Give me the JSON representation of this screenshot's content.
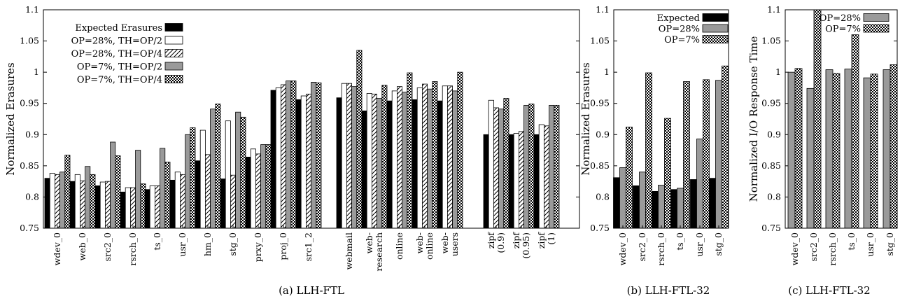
{
  "colors": {
    "black": "#000000",
    "white": "#ffffff",
    "gray": "#9a9a9a",
    "axis": "#000000"
  },
  "chart_data": [
    {
      "type": "bar",
      "caption": "(a) LLH-FTL",
      "ylabel": "Normalized Erasures",
      "ylim": [
        0.75,
        1.1
      ],
      "yticks": [
        "0.75",
        "0.8",
        "0.85",
        "0.9",
        "0.95",
        "1",
        "1.05",
        "1.1"
      ],
      "legend_position": "top-left",
      "categories": [
        "wdev_0",
        "web_0",
        "src2_0",
        "rsrch_0",
        "ts_0",
        "usr_0",
        "hm_0",
        "stg_0",
        "prxy_0",
        "proj_0",
        "src1_2",
        "webmail",
        "web-\nresearch",
        "online",
        "web-\nonline",
        "web-\nusers",
        "zipf\n(0.9)",
        "zipf\n(0.95)",
        "zipf\n(1)"
      ],
      "series": [
        {
          "name": "Expected Erasures",
          "pattern": "black",
          "values": [
            0.83,
            0.825,
            0.818,
            0.808,
            0.812,
            0.827,
            0.858,
            0.829,
            0.864,
            0.971,
            0.956,
            0.959,
            0.938,
            0.954,
            0.956,
            0.954,
            0.9,
            0.9,
            0.9
          ]
        },
        {
          "name": "OP=28%, TH=OP/2",
          "pattern": "white",
          "values": [
            0.838,
            0.836,
            0.824,
            0.815,
            0.818,
            0.84,
            0.907,
            0.922,
            0.877,
            0.975,
            0.962,
            0.982,
            0.966,
            0.97,
            0.975,
            0.978,
            0.955,
            0.902,
            0.916
          ]
        },
        {
          "name": "OP=28%, TH=OP/4",
          "pattern": "hatch",
          "values": [
            0.836,
            0.826,
            0.825,
            0.815,
            0.818,
            0.836,
            0.868,
            0.835,
            0.869,
            0.98,
            0.965,
            0.982,
            0.965,
            0.977,
            0.981,
            0.978,
            0.943,
            0.905,
            0.914
          ]
        },
        {
          "name": "OP=7%, TH=OP/2",
          "pattern": "gray",
          "values": [
            0.84,
            0.849,
            0.888,
            0.875,
            0.878,
            0.9,
            0.941,
            0.936,
            0.884,
            0.986,
            0.984,
            0.977,
            0.958,
            0.968,
            0.973,
            0.97,
            0.941,
            0.947,
            0.947
          ]
        },
        {
          "name": "OP=7%, TH=OP/4",
          "pattern": "check",
          "values": [
            0.867,
            0.836,
            0.866,
            0.821,
            0.856,
            0.911,
            0.949,
            0.928,
            0.884,
            0.986,
            0.983,
            1.035,
            0.979,
            0.999,
            0.985,
            1.0,
            0.958,
            0.949,
            0.947
          ]
        }
      ]
    },
    {
      "type": "bar",
      "caption": "(b) LLH-FTL-32",
      "ylabel": "Normalized Erasures",
      "ylim": [
        0.75,
        1.1
      ],
      "yticks": [
        "0.75",
        "0.8",
        "0.85",
        "0.9",
        "0.95",
        "1",
        "1.05",
        "1.1"
      ],
      "legend_position": "top-right",
      "categories": [
        "wdev_0",
        "src2_0",
        "rsrch_0",
        "ts_0",
        "usr_0",
        "stg_0"
      ],
      "series": [
        {
          "name": "Expected",
          "pattern": "black",
          "values": [
            0.831,
            0.818,
            0.809,
            0.812,
            0.828,
            0.83
          ]
        },
        {
          "name": "OP=28%",
          "pattern": "gray",
          "values": [
            0.847,
            0.84,
            0.819,
            0.814,
            0.893,
            0.987
          ]
        },
        {
          "name": "OP=7%",
          "pattern": "check",
          "values": [
            0.912,
            0.999,
            0.926,
            0.985,
            0.988,
            1.01
          ]
        }
      ]
    },
    {
      "type": "bar",
      "caption": "(c) LLH-FTL-32",
      "ylabel": "Normalized I/O Response Time",
      "ylim": [
        0.75,
        1.1
      ],
      "yticks": [
        "0.75",
        "0.8",
        "0.85",
        "0.9",
        "0.95",
        "1",
        "1.05",
        "1.1"
      ],
      "legend_position": "top-left",
      "categories": [
        "wdev_0",
        "src2_0",
        "rsrch_0",
        "ts_0",
        "usr_0",
        "stg_0"
      ],
      "series": [
        {
          "name": "OP=28%",
          "pattern": "gray",
          "values": [
            1.0,
            0.974,
            1.004,
            1.005,
            0.991,
            1.004
          ]
        },
        {
          "name": "OP=7%",
          "pattern": "check",
          "values": [
            1.006,
            1.1,
            0.998,
            1.06,
            0.997,
            1.012
          ]
        }
      ]
    }
  ]
}
